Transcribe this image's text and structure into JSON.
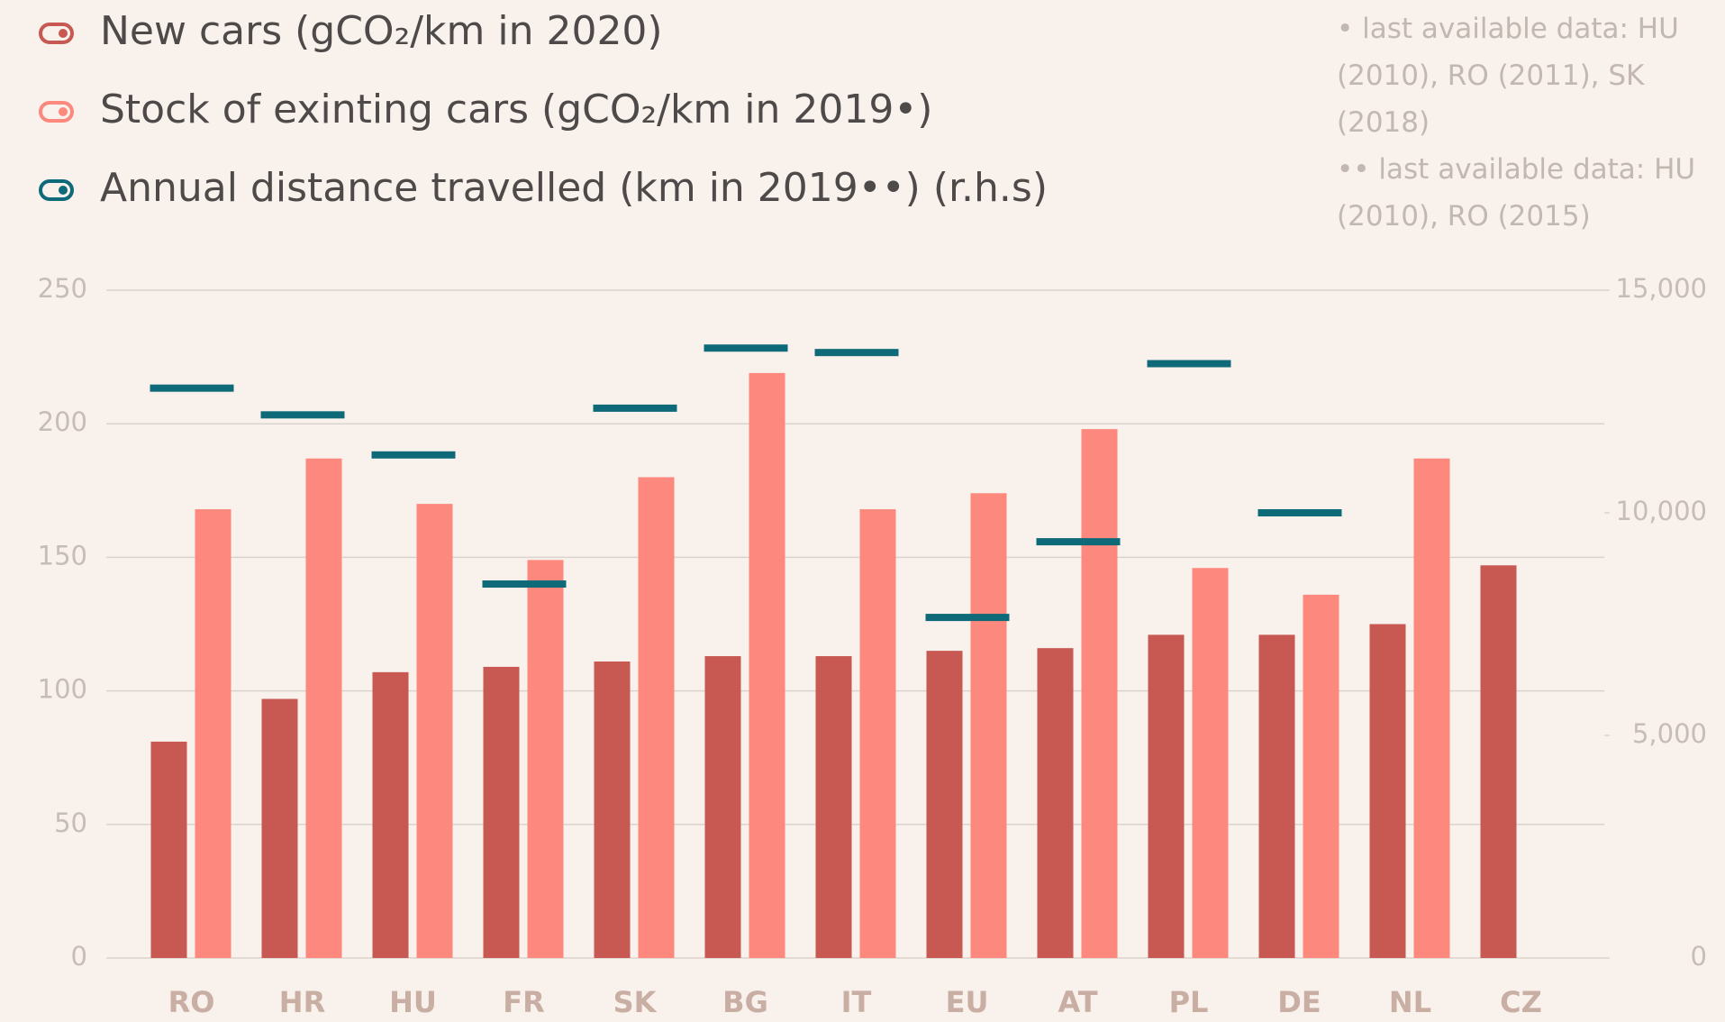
{
  "chart_data": {
    "type": "bar",
    "notes": [
      "• last available data: HU (2010), RO (2011), SK (2018)",
      "•• last available data: HU (2010), RO (2015)"
    ],
    "categories": [
      "RO",
      "HR",
      "HU",
      "FR",
      "SK",
      "BG",
      "IT",
      "EU",
      "AT",
      "PL",
      "DE",
      "NL",
      "CZ"
    ],
    "series": [
      {
        "name": "New cars (gCO₂/km in 2020)",
        "color": "#c75852",
        "values": [
          81,
          97,
          107,
          109,
          111,
          113,
          113,
          115,
          116,
          121,
          121,
          125,
          147
        ]
      },
      {
        "name": "Stock of exinting cars (gCO₂/km in 2019•)",
        "color": "#fd887d",
        "values": [
          168,
          187,
          170,
          149,
          180,
          219,
          168,
          174,
          198,
          146,
          136,
          187,
          null
        ]
      },
      {
        "name": "Annual distance travelled (km in 2019••) (r.h.s)",
        "color": "#0e6a78",
        "axis": "y2",
        "values": [
          12800,
          12200,
          11300,
          8400,
          12350,
          13700,
          13600,
          7650,
          9350,
          13350,
          10000,
          null,
          null
        ]
      }
    ],
    "ylim": [
      0,
      250
    ],
    "yticks": [
      0,
      50,
      100,
      150,
      200,
      250
    ],
    "y2lim": [
      0,
      15000
    ],
    "y2ticks": [
      0,
      {
        "value": 5000,
        "label": "5,000"
      },
      {
        "value": 10000,
        "label": "10,000"
      },
      {
        "value": 15000,
        "label": "15,000"
      }
    ],
    "grid": true
  }
}
